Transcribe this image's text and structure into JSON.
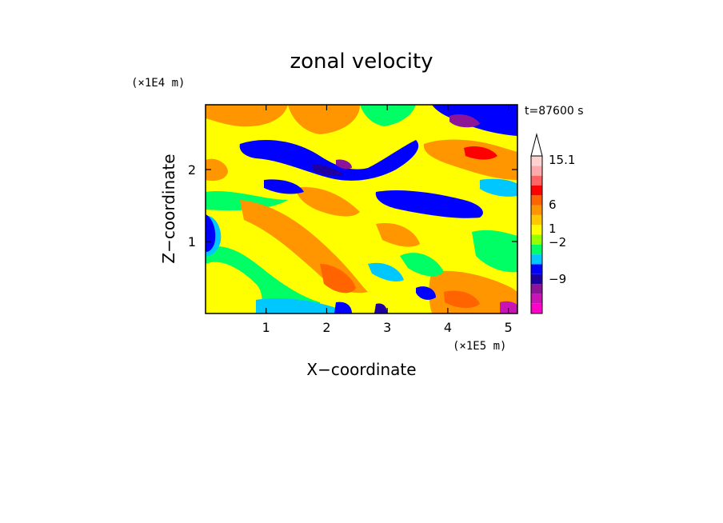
{
  "chart_data": {
    "type": "heatmap",
    "title": "zonal velocity",
    "xlabel": "X−coordinate",
    "ylabel": "Z−coordinate",
    "x_multiplier": "(×1E5 m)",
    "y_multiplier": "(×1E4 m)",
    "time_label": "t=87600 s",
    "xlim": [
      0,
      5.15
    ],
    "ylim": [
      0,
      2.9
    ],
    "x_ticks": [
      1,
      2,
      3,
      4,
      5
    ],
    "y_ticks": [
      1,
      2
    ],
    "x_tick_labels": [
      "1",
      "2",
      "3",
      "4",
      "5"
    ],
    "y_tick_labels": [
      "1",
      "2"
    ],
    "colorbar": {
      "colors": [
        "#ff00c8",
        "#c814b4",
        "#8c1496",
        "#1e00a0",
        "#0000ff",
        "#00c8ff",
        "#00ff64",
        "#96ff00",
        "#ffff00",
        "#ffc800",
        "#ff9600",
        "#ff6400",
        "#ff0000",
        "#ff6464",
        "#ffaaaa",
        "#ffd2d2"
      ],
      "labels": [
        "15.1",
        "6",
        "1",
        "−2",
        "−9"
      ],
      "extend": "max"
    }
  }
}
